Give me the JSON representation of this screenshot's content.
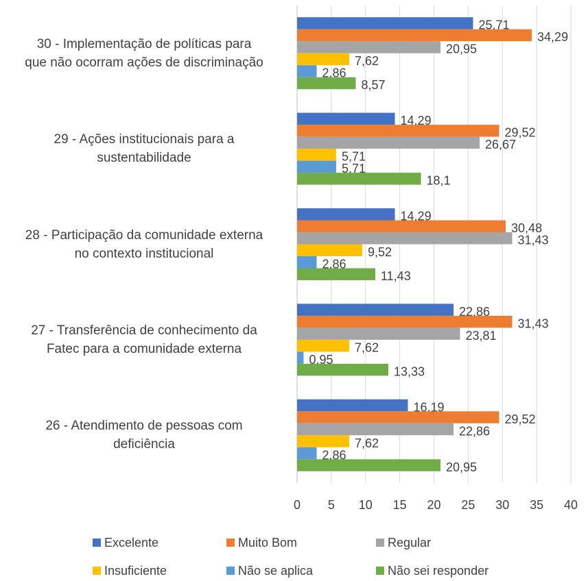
{
  "chart_data": {
    "type": "bar",
    "orientation": "horizontal",
    "categories": [
      "30 - Implementação de políticas para\nque não ocorram ações de discriminação",
      "29 - Ações institucionais para a\nsustentabilidade",
      "28 - Participação da comunidade externa\nno contexto institucional",
      "27 - Transferência de conhecimento da\nFatec para a comunidade externa",
      "26 - Atendimento de pessoas com\ndeficiência"
    ],
    "series": [
      {
        "name": "Excelente",
        "color": "#4472c4",
        "values": [
          25.71,
          14.29,
          14.29,
          22.86,
          16.19
        ],
        "value_labels": [
          "25,71",
          "14,29",
          "14,29",
          "22,86",
          "16,19"
        ]
      },
      {
        "name": "Muito Bom",
        "color": "#ed7d31",
        "values": [
          34.29,
          29.52,
          30.48,
          31.43,
          29.52
        ],
        "value_labels": [
          "34,29",
          "29,52",
          "30,48",
          "31,43",
          "29,52"
        ]
      },
      {
        "name": "Regular",
        "color": "#a5a5a5",
        "values": [
          20.95,
          26.67,
          31.43,
          23.81,
          22.86
        ],
        "value_labels": [
          "20,95",
          "26,67",
          "31,43",
          "23,81",
          "22,86"
        ]
      },
      {
        "name": "Insuficiente",
        "color": "#ffc000",
        "values": [
          7.62,
          5.71,
          9.52,
          7.62,
          7.62
        ],
        "value_labels": [
          "7,62",
          "5,71",
          "9,52",
          "7,62",
          "7,62"
        ]
      },
      {
        "name": "Não se aplica",
        "color": "#5b9bd5",
        "values": [
          2.86,
          5.71,
          2.86,
          0.95,
          2.86
        ],
        "value_labels": [
          "2,86",
          "5,71",
          "2,86",
          "0,95",
          "2,86"
        ]
      },
      {
        "name": "Não sei responder",
        "color": "#70ad47",
        "values": [
          8.57,
          18.1,
          11.43,
          13.33,
          20.95
        ],
        "value_labels": [
          "8,57",
          "18,1",
          "11,43",
          "13,33",
          "20,95"
        ]
      }
    ],
    "xlim": [
      0,
      40
    ],
    "xticks": [
      0,
      5,
      10,
      15,
      20,
      25,
      30,
      35,
      40
    ],
    "grid": true,
    "legend": "bottom"
  }
}
